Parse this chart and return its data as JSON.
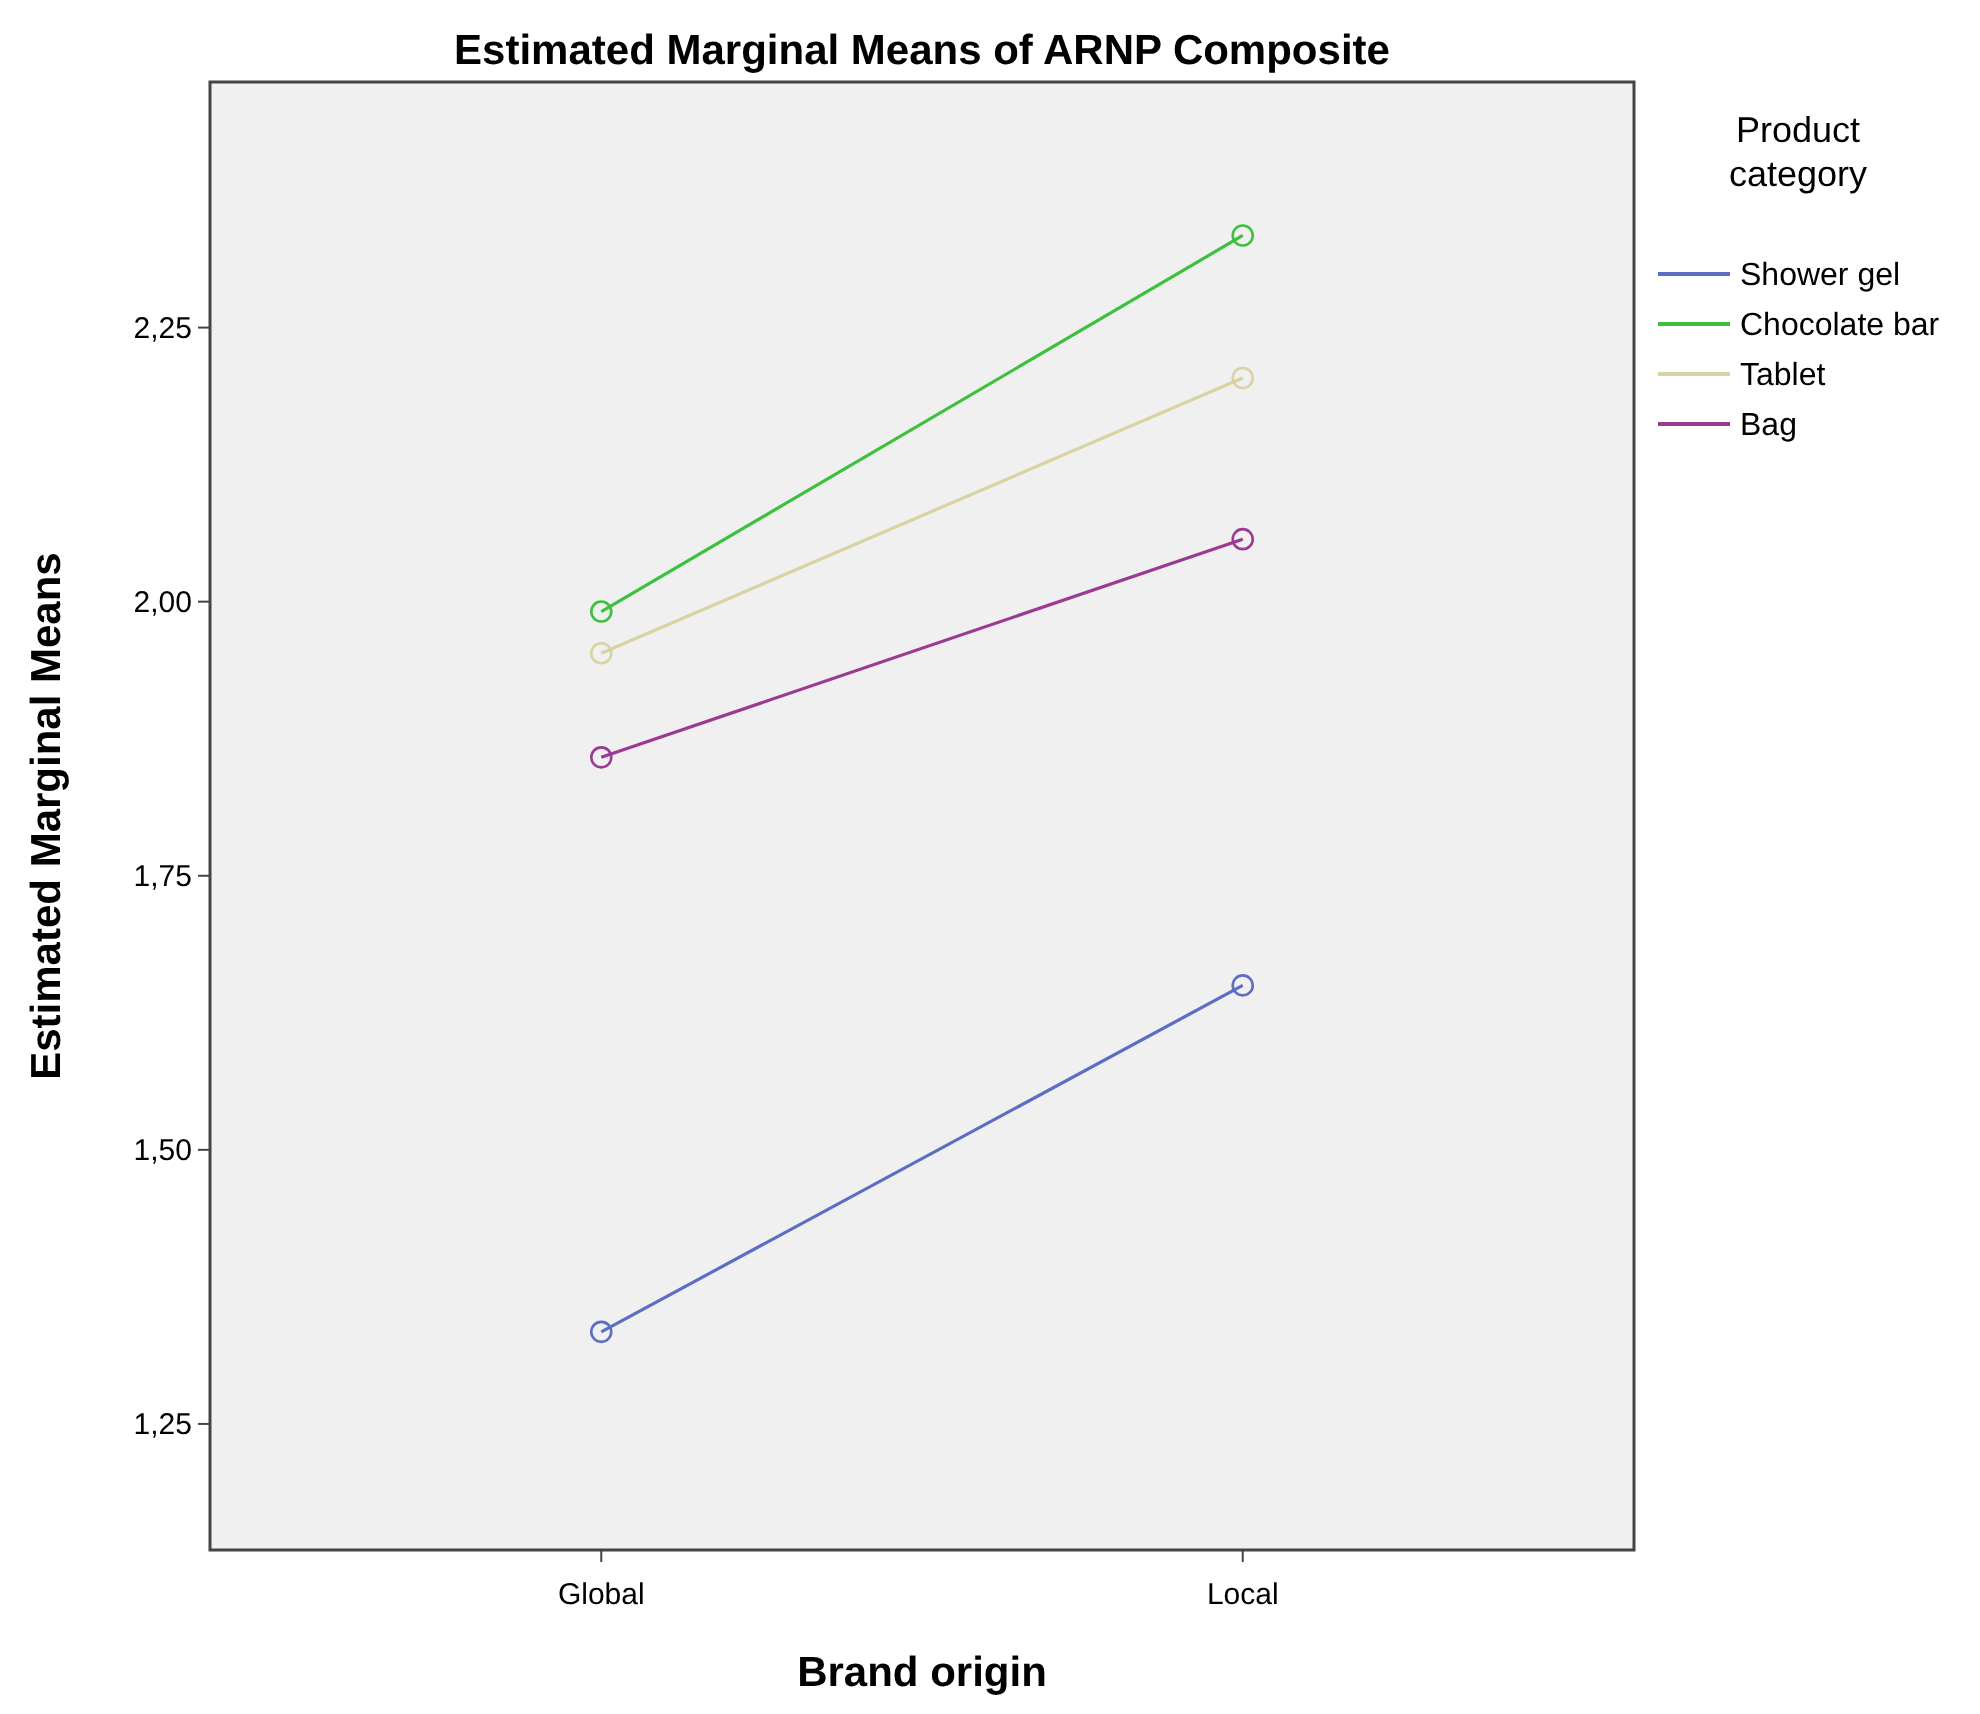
{
  "chart_data": {
    "type": "line",
    "title": "Estimated Marginal Means of ARNP Composite",
    "xlabel": "Brand origin",
    "ylabel": "Estimated Marginal Means",
    "legend_title": "Product category",
    "categories": [
      "Global",
      "Local"
    ],
    "series": [
      {
        "name": "Shower gel",
        "color": "#5b6ec4",
        "values": [
          1.334,
          1.65
        ]
      },
      {
        "name": "Chocolate bar",
        "color": "#3ec03e",
        "values": [
          1.991,
          2.334
        ]
      },
      {
        "name": "Tablet",
        "color": "#d8d3a0",
        "values": [
          1.953,
          2.204
        ]
      },
      {
        "name": "Bag",
        "color": "#9a3a93",
        "values": [
          1.858,
          2.057
        ]
      }
    ],
    "ylim": [
      1.135,
      2.474
    ],
    "yticks": [
      {
        "value": 1.25,
        "label": "1,25"
      },
      {
        "value": 1.5,
        "label": "1,50"
      },
      {
        "value": 1.75,
        "label": "1,75"
      },
      {
        "value": 2.0,
        "label": "2,00"
      },
      {
        "value": 2.25,
        "label": "2,25"
      }
    ],
    "grid": false,
    "legend": "top right",
    "marker": "circle",
    "line_style": "solid"
  }
}
